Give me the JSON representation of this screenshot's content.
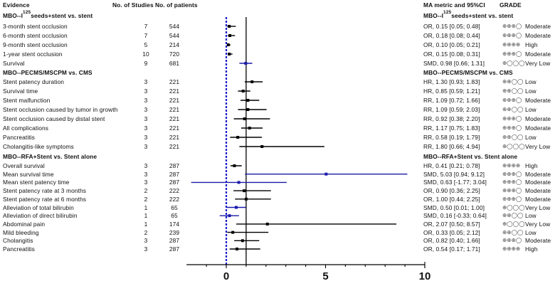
{
  "headers": {
    "evidence": "Evidence",
    "studies": "No. of Studies",
    "patients": "No. of patients",
    "metric": "MA metric and 95%CI",
    "grade": "GRADE"
  },
  "groups": [
    {
      "title_prefix": "MBO--I",
      "title_sup": "125",
      "title_suffix": "seeds+stent vs. stent",
      "rows": [
        {
          "label": "3-month stent occlusion",
          "studies": "7",
          "patients": "544",
          "metric": "OR, 0.15 [0.05; 0.48]",
          "grade_symbols": "⊕⊕⊕◯",
          "grade": "Moderate",
          "est": 0.15,
          "lo": 0.05,
          "hi": 0.48,
          "color": "#000000"
        },
        {
          "label": "6-month stent occlusion",
          "studies": "7",
          "patients": "544",
          "metric": "OR, 0.18 [0.08; 0.44]",
          "grade_symbols": "⊕⊕⊕◯",
          "grade": "Moderate",
          "est": 0.18,
          "lo": 0.08,
          "hi": 0.44,
          "color": "#000000"
        },
        {
          "label": "9-month stent occlusion",
          "studies": "5",
          "patients": "214",
          "metric": "OR, 0.10 [0.05; 0.21]",
          "grade_symbols": "⊕⊕⊕⊕",
          "grade": "High",
          "est": 0.1,
          "lo": 0.05,
          "hi": 0.21,
          "color": "#000000"
        },
        {
          "label": "1-year stent occlusion",
          "studies": "10",
          "patients": "720",
          "metric": "OR, 0.15 [0.08; 0.31]",
          "grade_symbols": "⊕⊕⊕◯",
          "grade": "Moderate",
          "est": 0.15,
          "lo": 0.08,
          "hi": 0.31,
          "color": "#000000"
        },
        {
          "label": "Survival",
          "studies": "9",
          "patients": "681",
          "metric": "SMD, 0.98 [0.66; 1.31]",
          "grade_symbols": "⊕◯◯◯",
          "grade": "Very Low",
          "est": 0.98,
          "lo": 0.66,
          "hi": 1.31,
          "color": "#1a1aaa"
        }
      ]
    },
    {
      "title_prefix": "MBO--PECMS/MSCPM vs. CMS",
      "title_sup": "",
      "title_suffix": "",
      "rows": [
        {
          "label": "Stent patency duration",
          "studies": "3",
          "patients": "221",
          "metric": "HR, 1.30 [0.93; 1.83]",
          "grade_symbols": "⊕⊕◯◯",
          "grade": "Low",
          "est": 1.3,
          "lo": 0.93,
          "hi": 1.83,
          "color": "#000000"
        },
        {
          "label": "Survival time",
          "studies": "3",
          "patients": "221",
          "metric": "HR, 0.85 [0.59; 1.21]",
          "grade_symbols": "⊕⊕◯◯",
          "grade": "Low",
          "est": 0.85,
          "lo": 0.59,
          "hi": 1.21,
          "color": "#000000"
        },
        {
          "label": "Stent malfunction",
          "studies": "3",
          "patients": "221",
          "metric": "RR, 1.09 [0.72; 1.66]",
          "grade_symbols": "⊕⊕⊕◯",
          "grade": "Moderate",
          "est": 1.09,
          "lo": 0.72,
          "hi": 1.66,
          "color": "#000000"
        },
        {
          "label": "Stent occlusion caused by tumor in growth",
          "studies": "3",
          "patients": "221",
          "metric": "RR, 1.09 [0.59; 2.03]",
          "grade_symbols": "⊕⊕◯◯",
          "grade": "Low",
          "est": 1.09,
          "lo": 0.59,
          "hi": 2.03,
          "color": "#000000"
        },
        {
          "label": "Stent occlusion caused by distal stent",
          "studies": "3",
          "patients": "221",
          "metric": "RR, 0.92 [0.38; 2.20]",
          "grade_symbols": "⊕⊕⊕◯",
          "grade": "Moderate",
          "est": 0.92,
          "lo": 0.38,
          "hi": 2.2,
          "color": "#000000"
        },
        {
          "label": "All complications",
          "studies": "3",
          "patients": "221",
          "metric": "RR, 1.17 [0.75; 1.83]",
          "grade_symbols": "⊕⊕⊕◯",
          "grade": "Moderate",
          "est": 1.17,
          "lo": 0.75,
          "hi": 1.83,
          "color": "#000000"
        },
        {
          "label": "Pancreatitis",
          "studies": "3",
          "patients": "221",
          "metric": "RR, 0.58 [0.19; 1.79]",
          "grade_symbols": "⊕⊕◯◯",
          "grade": "Low",
          "est": 0.58,
          "lo": 0.19,
          "hi": 1.79,
          "color": "#000000"
        },
        {
          "label": "Cholangitis-like symptoms",
          "studies": "3",
          "patients": "221",
          "metric": "RR, 1.80 [0.66; 4.94]",
          "grade_symbols": "⊕◯◯◯",
          "grade": "Very Low",
          "est": 1.8,
          "lo": 0.66,
          "hi": 4.94,
          "color": "#000000"
        }
      ]
    },
    {
      "title_prefix": "MBO--RFA+Stent vs. Stent alone",
      "title_sup": "",
      "title_suffix": "",
      "rows": [
        {
          "label": "Overall survival",
          "studies": "3",
          "patients": "287",
          "metric": "HR, 0.41 [0.21; 0.78]",
          "grade_symbols": "⊕⊕⊕⊕",
          "grade": "High",
          "est": 0.41,
          "lo": 0.21,
          "hi": 0.78,
          "color": "#000000"
        },
        {
          "label": "Mean survival time",
          "studies": "3",
          "patients": "287",
          "metric": "SMD, 5.03 [0.94; 9.12]",
          "grade_symbols": "⊕⊕⊕◯",
          "grade": "Moderate",
          "est": 5.03,
          "lo": 0.94,
          "hi": 9.12,
          "color": "#1a1aaa"
        },
        {
          "label": "Mean stent patency time",
          "studies": "3",
          "patients": "287",
          "metric": "SMD, 0.63 [-1.77; 3.04]",
          "grade_symbols": "⊕⊕⊕◯",
          "grade": "Moderate",
          "est": 0.63,
          "lo": -1.77,
          "hi": 3.04,
          "color": "#1a1aaa"
        },
        {
          "label": "Stent patency rate at 3 months",
          "studies": "2",
          "patients": "222",
          "metric": "OR, 0.90 [0.36; 2.25]",
          "grade_symbols": "⊕⊕⊕◯",
          "grade": "Moderate",
          "est": 0.9,
          "lo": 0.36,
          "hi": 2.25,
          "color": "#000000"
        },
        {
          "label": "Stent patency rate at 6 months",
          "studies": "2",
          "patients": "222",
          "metric": "OR, 1.00 [0.44; 2.25]",
          "grade_symbols": "⊕⊕⊕◯",
          "grade": "Moderate",
          "est": 1.0,
          "lo": 0.44,
          "hi": 2.25,
          "color": "#000000"
        },
        {
          "label": "Alleviation of total bilirubin",
          "studies": "1",
          "patients": "65",
          "metric": "SMD, 0.50 [0.01; 1.00]",
          "grade_symbols": "⊕◯◯◯",
          "grade": "Very Low",
          "est": 0.5,
          "lo": 0.01,
          "hi": 1.0,
          "color": "#1a1aaa"
        },
        {
          "label": "Alleviation of direct bilirubin",
          "studies": "1",
          "patients": "65",
          "metric": "SMD, 0.16 [-0.33; 0.64]",
          "grade_symbols": "⊕⊕◯◯",
          "grade": "Low",
          "est": 0.16,
          "lo": -0.33,
          "hi": 0.64,
          "color": "#1a1aaa"
        },
        {
          "label": "Abdominal pain",
          "studies": "1",
          "patients": "174",
          "metric": "OR, 2.07 [0.50; 8.57]",
          "grade_symbols": "⊕◯◯◯",
          "grade": "Very Low",
          "est": 2.07,
          "lo": 0.5,
          "hi": 8.57,
          "color": "#000000"
        },
        {
          "label": "Mild bleeding",
          "studies": "2",
          "patients": "239",
          "metric": "OR, 0.33 [0.05; 2.12]",
          "grade_symbols": "⊕⊕◯◯",
          "grade": "Low",
          "est": 0.33,
          "lo": 0.05,
          "hi": 2.12,
          "color": "#000000"
        },
        {
          "label": "Cholangitis",
          "studies": "3",
          "patients": "287",
          "metric": "OR, 0.82 [0.40; 1.66]",
          "grade_symbols": "⊕⊕⊕◯",
          "grade": "Moderate",
          "est": 0.82,
          "lo": 0.4,
          "hi": 1.66,
          "color": "#000000"
        },
        {
          "label": "Pancreatitis",
          "studies": "3",
          "patients": "287",
          "metric": "OR, 0.54 [0.17; 1.71]",
          "grade_symbols": "⊕⊕⊕⊕",
          "grade": "High",
          "est": 0.54,
          "lo": 0.17,
          "hi": 1.71,
          "color": "#000000"
        }
      ]
    }
  ],
  "axis": {
    "ticks": [
      "0",
      "5",
      "10"
    ],
    "tick_values": [
      0,
      5,
      10
    ],
    "min": -2,
    "max": 10,
    "ref_solid": 1,
    "ref_dashed": 0
  },
  "colors": {
    "smd_series": "#1a1aaa",
    "ratio_series": "#000000",
    "dashed_ref": "#1a1acc"
  },
  "chart_data": {
    "type": "forest",
    "title": "",
    "xlabel": "",
    "xlim": [
      -2,
      10
    ],
    "xticks": [
      0,
      5,
      10
    ],
    "reference_lines": [
      {
        "x": 1,
        "style": "solid",
        "color": "#000000"
      },
      {
        "x": 0,
        "style": "dashed",
        "color": "#1a1acc"
      }
    ],
    "columns": [
      "Evidence",
      "No. of Studies",
      "No. of patients",
      "MA metric and 95%CI",
      "GRADE"
    ],
    "series": [
      {
        "name": "MBO--I125 seeds+stent vs. stent",
        "points": [
          {
            "label": "3-month stent occlusion",
            "metric": "OR",
            "est": 0.15,
            "lo": 0.05,
            "hi": 0.48,
            "studies": 7,
            "patients": 544,
            "grade": "Moderate"
          },
          {
            "label": "6-month stent occlusion",
            "metric": "OR",
            "est": 0.18,
            "lo": 0.08,
            "hi": 0.44,
            "studies": 7,
            "patients": 544,
            "grade": "Moderate"
          },
          {
            "label": "9-month stent occlusion",
            "metric": "OR",
            "est": 0.1,
            "lo": 0.05,
            "hi": 0.21,
            "studies": 5,
            "patients": 214,
            "grade": "High"
          },
          {
            "label": "1-year stent occlusion",
            "metric": "OR",
            "est": 0.15,
            "lo": 0.08,
            "hi": 0.31,
            "studies": 10,
            "patients": 720,
            "grade": "Moderate"
          },
          {
            "label": "Survival",
            "metric": "SMD",
            "est": 0.98,
            "lo": 0.66,
            "hi": 1.31,
            "studies": 9,
            "patients": 681,
            "grade": "Very Low"
          }
        ]
      },
      {
        "name": "MBO--PECMS/MSCPM vs. CMS",
        "points": [
          {
            "label": "Stent patency duration",
            "metric": "HR",
            "est": 1.3,
            "lo": 0.93,
            "hi": 1.83,
            "studies": 3,
            "patients": 221,
            "grade": "Low"
          },
          {
            "label": "Survival time",
            "metric": "HR",
            "est": 0.85,
            "lo": 0.59,
            "hi": 1.21,
            "studies": 3,
            "patients": 221,
            "grade": "Low"
          },
          {
            "label": "Stent malfunction",
            "metric": "RR",
            "est": 1.09,
            "lo": 0.72,
            "hi": 1.66,
            "studies": 3,
            "patients": 221,
            "grade": "Moderate"
          },
          {
            "label": "Stent occlusion caused by tumor in growth",
            "metric": "RR",
            "est": 1.09,
            "lo": 0.59,
            "hi": 2.03,
            "studies": 3,
            "patients": 221,
            "grade": "Low"
          },
          {
            "label": "Stent occlusion caused by distal stent",
            "metric": "RR",
            "est": 0.92,
            "lo": 0.38,
            "hi": 2.2,
            "studies": 3,
            "patients": 221,
            "grade": "Moderate"
          },
          {
            "label": "All complications",
            "metric": "RR",
            "est": 1.17,
            "lo": 0.75,
            "hi": 1.83,
            "studies": 3,
            "patients": 221,
            "grade": "Moderate"
          },
          {
            "label": "Pancreatitis",
            "metric": "RR",
            "est": 0.58,
            "lo": 0.19,
            "hi": 1.79,
            "studies": 3,
            "patients": 221,
            "grade": "Low"
          },
          {
            "label": "Cholangitis-like symptoms",
            "metric": "RR",
            "est": 1.8,
            "lo": 0.66,
            "hi": 4.94,
            "studies": 3,
            "patients": 221,
            "grade": "Very Low"
          }
        ]
      },
      {
        "name": "MBO--RFA+Stent vs. Stent alone",
        "points": [
          {
            "label": "Overall survival",
            "metric": "HR",
            "est": 0.41,
            "lo": 0.21,
            "hi": 0.78,
            "studies": 3,
            "patients": 287,
            "grade": "High"
          },
          {
            "label": "Mean survival time",
            "metric": "SMD",
            "est": 5.03,
            "lo": 0.94,
            "hi": 9.12,
            "studies": 3,
            "patients": 287,
            "grade": "Moderate"
          },
          {
            "label": "Mean stent patency time",
            "metric": "SMD",
            "est": 0.63,
            "lo": -1.77,
            "hi": 3.04,
            "studies": 3,
            "patients": 287,
            "grade": "Moderate"
          },
          {
            "label": "Stent patency rate at 3 months",
            "metric": "OR",
            "est": 0.9,
            "lo": 0.36,
            "hi": 2.25,
            "studies": 2,
            "patients": 222,
            "grade": "Moderate"
          },
          {
            "label": "Stent patency rate at 6 months",
            "metric": "OR",
            "est": 1.0,
            "lo": 0.44,
            "hi": 2.25,
            "studies": 2,
            "patients": 222,
            "grade": "Moderate"
          },
          {
            "label": "Alleviation of total bilirubin",
            "metric": "SMD",
            "est": 0.5,
            "lo": 0.01,
            "hi": 1.0,
            "studies": 1,
            "patients": 65,
            "grade": "Very Low"
          },
          {
            "label": "Alleviation of direct bilirubin",
            "metric": "SMD",
            "est": 0.16,
            "lo": -0.33,
            "hi": 0.64,
            "studies": 1,
            "patients": 65,
            "grade": "Low"
          },
          {
            "label": "Abdominal pain",
            "metric": "OR",
            "est": 2.07,
            "lo": 0.5,
            "hi": 8.57,
            "studies": 1,
            "patients": 174,
            "grade": "Very Low"
          },
          {
            "label": "Mild bleeding",
            "metric": "OR",
            "est": 0.33,
            "lo": 0.05,
            "hi": 2.12,
            "studies": 2,
            "patients": 239,
            "grade": "Low"
          },
          {
            "label": "Cholangitis",
            "metric": "OR",
            "est": 0.82,
            "lo": 0.4,
            "hi": 1.66,
            "studies": 3,
            "patients": 287,
            "grade": "Moderate"
          },
          {
            "label": "Pancreatitis",
            "metric": "OR",
            "est": 0.54,
            "lo": 0.17,
            "hi": 1.71,
            "studies": 3,
            "patients": 287,
            "grade": "High"
          }
        ]
      }
    ]
  }
}
